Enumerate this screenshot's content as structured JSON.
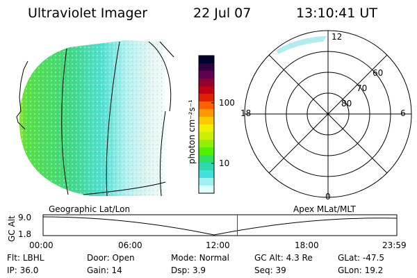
{
  "header": {
    "instrument": "Ultraviolet Imager",
    "date": "22 Jul 07",
    "time": "13:10:41 UT"
  },
  "colorbar": {
    "label": "photon cm⁻²s⁻¹",
    "ticks": [
      "100",
      "10"
    ]
  },
  "polar": {
    "mlt_labels": [
      "12",
      "18",
      "6",
      "0"
    ],
    "lat_labels": [
      "60",
      "70",
      "80"
    ]
  },
  "timeline": {
    "left_caption": "Geographic Lat/Lon",
    "right_caption": "Apex MLat/MLT",
    "y_axis_label": "GC Alt",
    "y_ticks": [
      "9.0",
      "1.8"
    ],
    "x_ticks": [
      "00:00",
      "06:00",
      "12:00",
      "18:00",
      "23:59"
    ],
    "current_time_fraction": 0.5491,
    "marker_color": "#e00000"
  },
  "footer": {
    "row1": [
      {
        "label": "Flt:",
        "value": "LBHL"
      },
      {
        "label": "Door:",
        "value": "Open"
      },
      {
        "label": "Mode:",
        "value": "Normal"
      },
      {
        "label": "GC Alt:",
        "value": "4.3 Re"
      },
      {
        "label": "GLat:",
        "value": "-47.5"
      }
    ],
    "row2": [
      {
        "label": "IP:",
        "value": "36.0"
      },
      {
        "label": "Gain:",
        "value": "14"
      },
      {
        "label": "Dsp:",
        "value": "3.9"
      },
      {
        "label": "Seq:",
        "value": "39"
      },
      {
        "label": "GLon:",
        "value": "19.2"
      }
    ]
  },
  "colors": {
    "scale": [
      "#000030",
      "#300040",
      "#600050",
      "#900030",
      "#c00010",
      "#e02000",
      "#ff6000",
      "#ff9800",
      "#ffc800",
      "#f0f000",
      "#c8f000",
      "#90f000",
      "#50f000",
      "#30e060",
      "#30d8b0",
      "#40e0e0",
      "#a0f0f0",
      "#e0ffff"
    ]
  }
}
